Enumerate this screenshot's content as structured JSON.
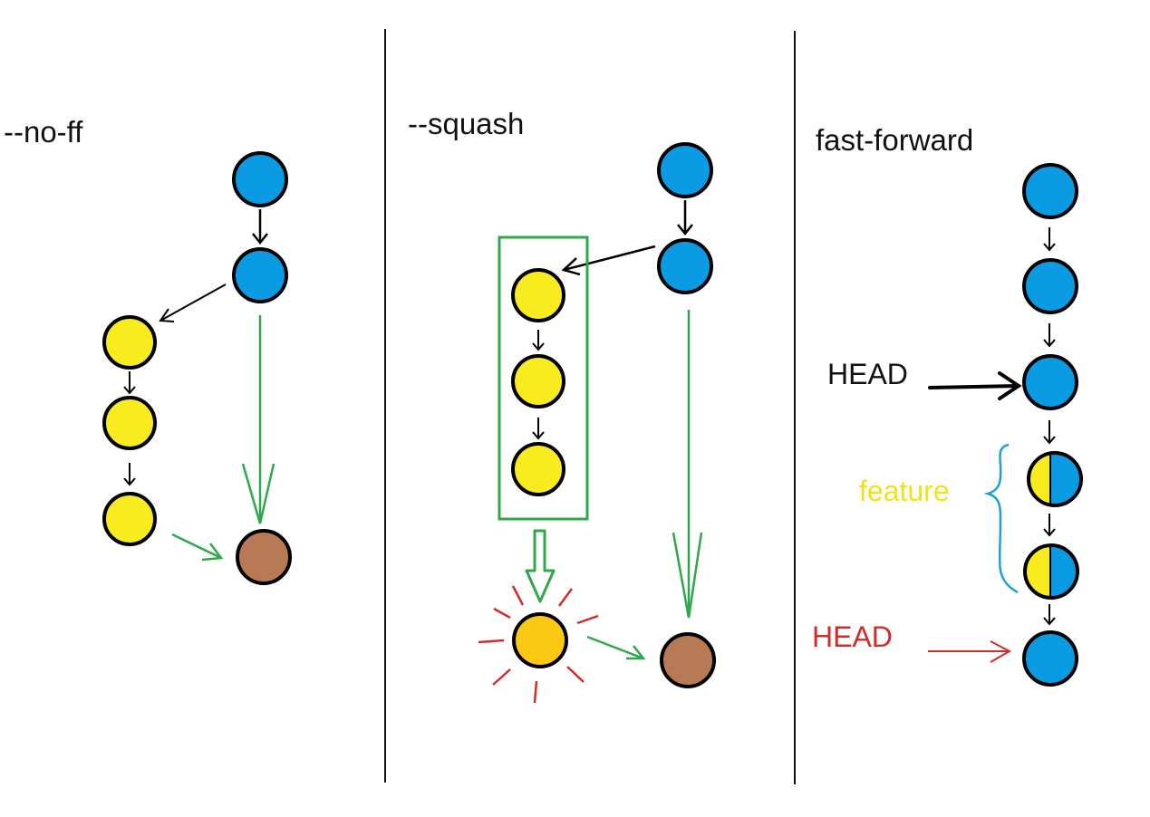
{
  "panels": {
    "no_ff": {
      "title": "--no-ff"
    },
    "squash": {
      "title": "--squash"
    },
    "fast_forward": {
      "title": "fast-forward",
      "head_old": "HEAD",
      "head_new": "HEAD",
      "feature_label": "feature"
    }
  },
  "colors": {
    "main_commit": "#0a9be2",
    "feature_commit": "#f8ec1e",
    "merge_commit": "#b87a55",
    "squash_commit": "#fbc814",
    "green_arrow": "#2ea84a",
    "red_accent": "#d42a2a",
    "brace": "#1ea0d8",
    "feature_text": "#f2e21a",
    "head_old_text": "#111111",
    "head_new_text": "#d42a2a"
  }
}
